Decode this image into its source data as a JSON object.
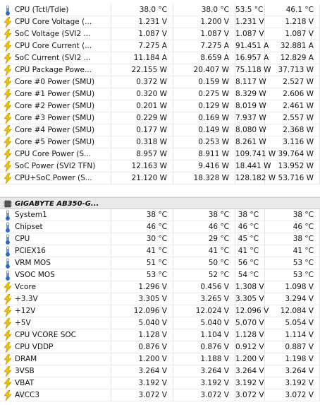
{
  "cpu_rows": [
    {
      "icon": "thermometer-icon",
      "label": "CPU (Tctl/Tdie)",
      "current": "38.0 °C",
      "min": "38.0 °C",
      "max": "53.5 °C",
      "avg": "46.1 °C"
    },
    {
      "icon": "lightning-icon",
      "label": "CPU Core Voltage (...",
      "current": "1.231 V",
      "min": "1.200 V",
      "max": "1.231 V",
      "avg": "1.218 V"
    },
    {
      "icon": "lightning-icon",
      "label": "SoC Voltage (SVI2 ...",
      "current": "1.087 V",
      "min": "1.087 V",
      "max": "1.087 V",
      "avg": "1.087 V"
    },
    {
      "icon": "lightning-icon",
      "label": "CPU Core Current (...",
      "current": "7.275 A",
      "min": "7.275 A",
      "max": "91.451 A",
      "avg": "32.881 A"
    },
    {
      "icon": "lightning-icon",
      "label": "SoC Current (SVI2 ...",
      "current": "11.184 A",
      "min": "8.659 A",
      "max": "16.957 A",
      "avg": "12.829 A"
    },
    {
      "icon": "lightning-icon",
      "label": "CPU Package Powe...",
      "current": "22.155 W",
      "min": "20.407 W",
      "max": "75.118 W",
      "avg": "37.713 W"
    },
    {
      "icon": "lightning-icon",
      "label": "Core #0 Power (SMU)",
      "current": "0.372 W",
      "min": "0.159 W",
      "max": "8.117 W",
      "avg": "2.527 W"
    },
    {
      "icon": "lightning-icon",
      "label": "Core #1 Power (SMU)",
      "current": "0.320 W",
      "min": "0.275 W",
      "max": "8.329 W",
      "avg": "2.606 W"
    },
    {
      "icon": "lightning-icon",
      "label": "Core #2 Power (SMU)",
      "current": "0.201 W",
      "min": "0.129 W",
      "max": "8.019 W",
      "avg": "2.461 W"
    },
    {
      "icon": "lightning-icon",
      "label": "Core #3 Power (SMU)",
      "current": "0.229 W",
      "min": "0.169 W",
      "max": "7.937 W",
      "avg": "2.557 W"
    },
    {
      "icon": "lightning-icon",
      "label": "Core #4 Power (SMU)",
      "current": "0.177 W",
      "min": "0.149 W",
      "max": "8.080 W",
      "avg": "2.368 W"
    },
    {
      "icon": "lightning-icon",
      "label": "Core #5 Power (SMU)",
      "current": "0.318 W",
      "min": "0.253 W",
      "max": "8.261 W",
      "avg": "3.116 W"
    },
    {
      "icon": "lightning-icon",
      "label": "CPU Core Power (S...",
      "current": "8.957 W",
      "min": "8.911 W",
      "max": "109.741 W",
      "avg": "39.764 W"
    },
    {
      "icon": "lightning-icon",
      "label": "SoC Power (SVI2 TFN)",
      "current": "12.163 W",
      "min": "9.416 W",
      "max": "18.441 W",
      "avg": "13.952 W"
    },
    {
      "icon": "lightning-icon",
      "label": "CPU+SoC Power (S...",
      "current": "21.120 W",
      "min": "18.328 W",
      "max": "128.182 W",
      "avg": "53.716 W"
    }
  ],
  "group": {
    "icon": "chip-icon",
    "label": "GIGABYTE AB350-G..."
  },
  "board_rows": [
    {
      "icon": "thermometer-icon",
      "label": "System1",
      "current": "38 °C",
      "min": "38 °C",
      "max": "38 °C",
      "avg": "38 °C"
    },
    {
      "icon": "thermometer-icon",
      "label": "Chipset",
      "current": "46 °C",
      "min": "46 °C",
      "max": "46 °C",
      "avg": "46 °C"
    },
    {
      "icon": "thermometer-icon",
      "label": "CPU",
      "current": "30 °C",
      "min": "29 °C",
      "max": "45 °C",
      "avg": "38 °C"
    },
    {
      "icon": "thermometer-icon",
      "label": "PCIEX16",
      "current": "41 °C",
      "min": "41 °C",
      "max": "41 °C",
      "avg": "41 °C"
    },
    {
      "icon": "thermometer-icon",
      "label": "VRM MOS",
      "current": "51 °C",
      "min": "50 °C",
      "max": "56 °C",
      "avg": "53 °C"
    },
    {
      "icon": "thermometer-icon",
      "label": "VSOC MOS",
      "current": "53 °C",
      "min": "52 °C",
      "max": "54 °C",
      "avg": "53 °C"
    },
    {
      "icon": "lightning-icon",
      "label": "Vcore",
      "current": "1.296 V",
      "min": "0.456 V",
      "max": "1.308 V",
      "avg": "1.098 V"
    },
    {
      "icon": "lightning-icon",
      "label": "+3.3V",
      "current": "3.305 V",
      "min": "3.265 V",
      "max": "3.305 V",
      "avg": "3.294 V"
    },
    {
      "icon": "lightning-icon",
      "label": "+12V",
      "current": "12.096 V",
      "min": "12.024 V",
      "max": "12.096 V",
      "avg": "12.084 V"
    },
    {
      "icon": "lightning-icon",
      "label": "+5V",
      "current": "5.040 V",
      "min": "5.040 V",
      "max": "5.070 V",
      "avg": "5.054 V"
    },
    {
      "icon": "lightning-icon",
      "label": "CPU VCORE SOC",
      "current": "1.128 V",
      "min": "1.104 V",
      "max": "1.128 V",
      "avg": "1.114 V"
    },
    {
      "icon": "lightning-icon",
      "label": "CPU VDDP",
      "current": "0.876 V",
      "min": "0.876 V",
      "max": "0.912 V",
      "avg": "0.887 V"
    },
    {
      "icon": "lightning-icon",
      "label": "DRAM",
      "current": "1.200 V",
      "min": "1.188 V",
      "max": "1.200 V",
      "avg": "1.198 V"
    },
    {
      "icon": "lightning-icon",
      "label": "3VSB",
      "current": "3.264 V",
      "min": "3.264 V",
      "max": "3.264 V",
      "avg": "3.264 V"
    },
    {
      "icon": "lightning-icon",
      "label": "VBAT",
      "current": "3.192 V",
      "min": "3.192 V",
      "max": "3.192 V",
      "avg": "3.192 V"
    },
    {
      "icon": "lightning-icon",
      "label": "AVCC3",
      "current": "3.072 V",
      "min": "3.072 V",
      "max": "3.072 V",
      "avg": "3.072 V"
    }
  ]
}
